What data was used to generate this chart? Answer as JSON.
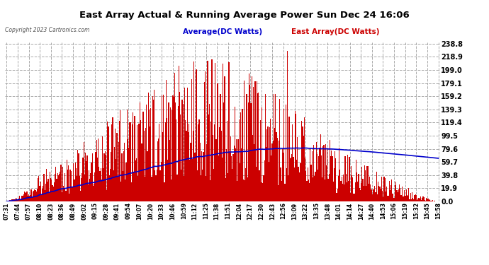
{
  "title": "East Array Actual & Running Average Power Sun Dec 24 16:06",
  "copyright": "Copyright 2023 Cartronics.com",
  "legend_avg": "Average(DC Watts)",
  "legend_east": "East Array(DC Watts)",
  "ymin": 0.0,
  "ymax": 238.8,
  "yticks": [
    0.0,
    19.9,
    39.8,
    59.7,
    79.6,
    99.5,
    119.4,
    139.3,
    159.2,
    179.1,
    199.0,
    218.9,
    238.8
  ],
  "background_color": "#ffffff",
  "plot_bg_color": "#ffffff",
  "bar_color": "#cc0000",
  "avg_color": "#0000cc",
  "grid_color": "#aaaaaa",
  "title_color": "#000000",
  "copyright_color": "#000000",
  "xtick_labels": [
    "07:31",
    "07:44",
    "07:57",
    "08:10",
    "08:23",
    "08:36",
    "08:49",
    "09:02",
    "09:15",
    "09:28",
    "09:41",
    "09:54",
    "10:07",
    "10:20",
    "10:33",
    "10:46",
    "10:59",
    "11:12",
    "11:25",
    "11:38",
    "11:51",
    "12:04",
    "12:17",
    "12:30",
    "12:43",
    "12:56",
    "13:09",
    "13:22",
    "13:35",
    "13:48",
    "14:01",
    "14:14",
    "14:27",
    "14:40",
    "14:53",
    "15:06",
    "15:19",
    "15:32",
    "15:45",
    "15:58"
  ]
}
